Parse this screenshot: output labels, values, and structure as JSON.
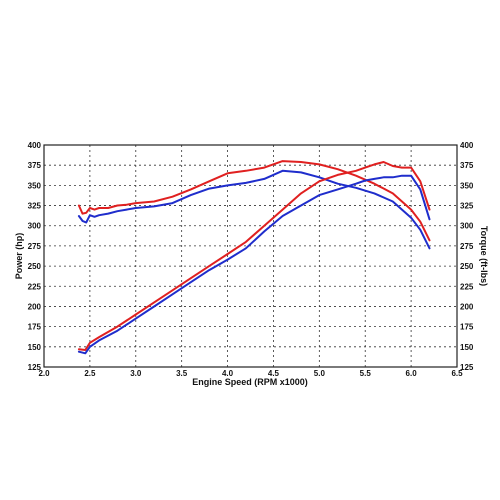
{
  "chart_data": {
    "type": "line",
    "title": "",
    "xlabel": "Engine Speed (RPM x1000)",
    "ylabel_left": "Power (hp)",
    "ylabel_right": "Torque (ft-lbs)",
    "xlim": [
      2.0,
      6.5
    ],
    "ylim_left": [
      125,
      400
    ],
    "ylim_right": [
      125,
      400
    ],
    "x_ticks": [
      "2.0",
      "2.5",
      "3.0",
      "3.5",
      "4.0",
      "4.5",
      "5.0",
      "5.5",
      "6.0",
      "6.5"
    ],
    "y_ticks_left": [
      "125",
      "150",
      "175",
      "200",
      "225",
      "250",
      "275",
      "300",
      "325",
      "350",
      "375",
      "400"
    ],
    "y_ticks_right": [
      "125",
      "150",
      "175",
      "200",
      "225",
      "250",
      "275",
      "300",
      "325",
      "350",
      "375",
      "400"
    ],
    "grid": true,
    "series": [
      {
        "color": "#e02020",
        "axis": "right",
        "kind": "torque",
        "x": [
          2.38,
          2.42,
          2.46,
          2.5,
          2.55,
          2.6,
          2.7,
          2.8,
          2.9,
          3.0,
          3.2,
          3.4,
          3.6,
          3.8,
          4.0,
          4.2,
          4.4,
          4.6,
          4.8,
          5.0,
          5.2,
          5.4,
          5.6,
          5.8,
          6.0,
          6.1,
          6.2
        ],
        "y": [
          325,
          315,
          316,
          322,
          320,
          322,
          322,
          325,
          326,
          328,
          330,
          336,
          345,
          355,
          365,
          368,
          372,
          380,
          379,
          376,
          370,
          362,
          352,
          340,
          320,
          305,
          282
        ]
      },
      {
        "color": "#1f2dcc",
        "axis": "right",
        "kind": "torque",
        "x": [
          2.38,
          2.42,
          2.46,
          2.5,
          2.55,
          2.6,
          2.7,
          2.8,
          2.9,
          3.0,
          3.2,
          3.4,
          3.6,
          3.8,
          4.0,
          4.2,
          4.4,
          4.6,
          4.8,
          5.0,
          5.2,
          5.4,
          5.6,
          5.8,
          6.0,
          6.1,
          6.2
        ],
        "y": [
          312,
          306,
          304,
          313,
          311,
          313,
          315,
          318,
          320,
          322,
          324,
          328,
          338,
          346,
          350,
          353,
          358,
          368,
          366,
          360,
          352,
          347,
          340,
          330,
          310,
          295,
          272
        ]
      },
      {
        "color": "#e02020",
        "axis": "left",
        "kind": "power",
        "x": [
          2.38,
          2.45,
          2.5,
          2.6,
          2.8,
          3.0,
          3.2,
          3.4,
          3.6,
          3.8,
          4.0,
          4.2,
          4.4,
          4.6,
          4.8,
          5.0,
          5.2,
          5.4,
          5.5,
          5.6,
          5.7,
          5.8,
          5.9,
          6.0,
          6.1,
          6.2
        ],
        "y": [
          147,
          146,
          155,
          162,
          175,
          190,
          205,
          220,
          235,
          250,
          265,
          280,
          300,
          320,
          340,
          355,
          363,
          368,
          372,
          376,
          379,
          374,
          372,
          372,
          355,
          320
        ]
      },
      {
        "color": "#1f2dcc",
        "axis": "left",
        "kind": "power",
        "x": [
          2.38,
          2.45,
          2.5,
          2.6,
          2.8,
          3.0,
          3.2,
          3.4,
          3.6,
          3.8,
          4.0,
          4.2,
          4.4,
          4.6,
          4.8,
          5.0,
          5.2,
          5.4,
          5.5,
          5.6,
          5.7,
          5.8,
          5.9,
          6.0,
          6.1,
          6.2
        ],
        "y": [
          144,
          142,
          150,
          158,
          170,
          185,
          200,
          215,
          230,
          245,
          258,
          272,
          293,
          312,
          325,
          338,
          345,
          352,
          356,
          358,
          360,
          360,
          362,
          362,
          345,
          308
        ]
      }
    ]
  }
}
